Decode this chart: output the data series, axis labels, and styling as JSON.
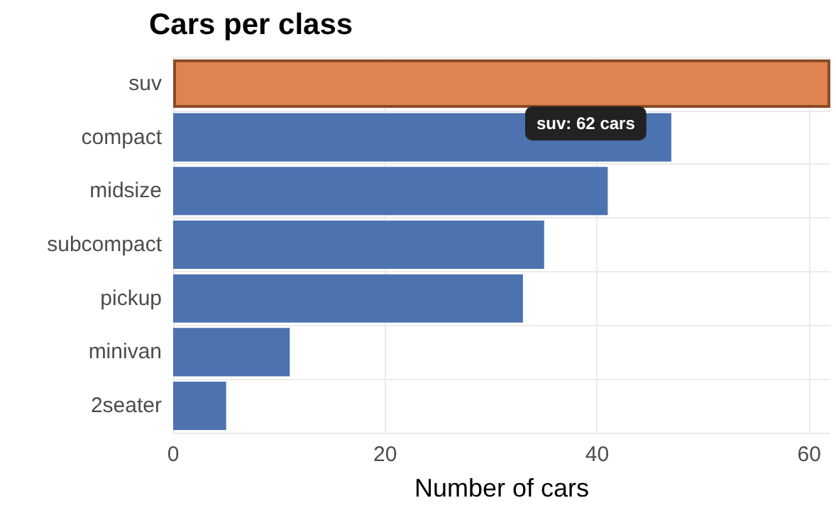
{
  "chart_data": {
    "type": "bar",
    "orientation": "horizontal",
    "title": "Cars per class",
    "xlabel": "Number of cars",
    "categories": [
      "suv",
      "compact",
      "midsize",
      "subcompact",
      "pickup",
      "minivan",
      "2seater"
    ],
    "values": [
      62,
      47,
      41,
      35,
      33,
      11,
      5
    ],
    "colors": [
      "#dd8452",
      "#4c72b0",
      "#4c72b0",
      "#4c72b0",
      "#4c72b0",
      "#4c72b0",
      "#4c72b0"
    ],
    "xlim": [
      0,
      62
    ],
    "xticks": [
      0,
      20,
      40,
      60
    ],
    "grid": true,
    "annotations": [
      "suv: 62 cars"
    ]
  }
}
